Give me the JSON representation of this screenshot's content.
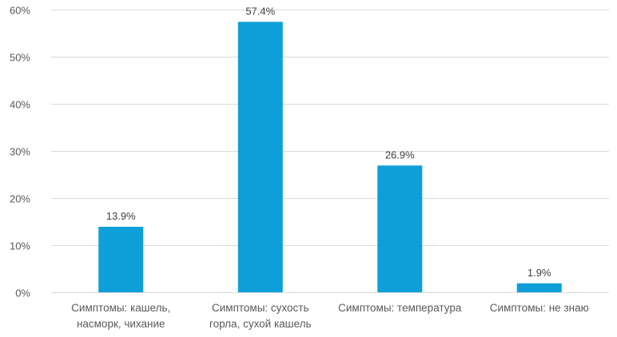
{
  "chart_data": {
    "type": "bar",
    "title": "",
    "xlabel": "",
    "ylabel": "",
    "categories": [
      [
        "Симптомы: кашель,",
        "насморк, чихание"
      ],
      [
        "Симптомы: сухость",
        "горла, сухой кашель"
      ],
      [
        "Симптомы: температура"
      ],
      [
        "Симптомы: не знаю"
      ]
    ],
    "series": [
      {
        "values": [
          13.9,
          57.4,
          26.9,
          1.9
        ],
        "color": "#0e9fd8"
      }
    ],
    "data_labels": [
      "13.9%",
      "57.4%",
      "26.9%",
      "1.9%"
    ],
    "ylim": [
      0,
      60
    ],
    "yticks": [
      0,
      10,
      20,
      30,
      40,
      50,
      60
    ],
    "ytick_labels": [
      "0%",
      "10%",
      "20%",
      "30%",
      "40%",
      "50%",
      "60%"
    ],
    "grid": true,
    "legend": "none"
  },
  "colors": {
    "bar": "#0e9fd8",
    "grid": "#d9d9d9",
    "axis_text": "#595959",
    "label_text": "#404040"
  }
}
